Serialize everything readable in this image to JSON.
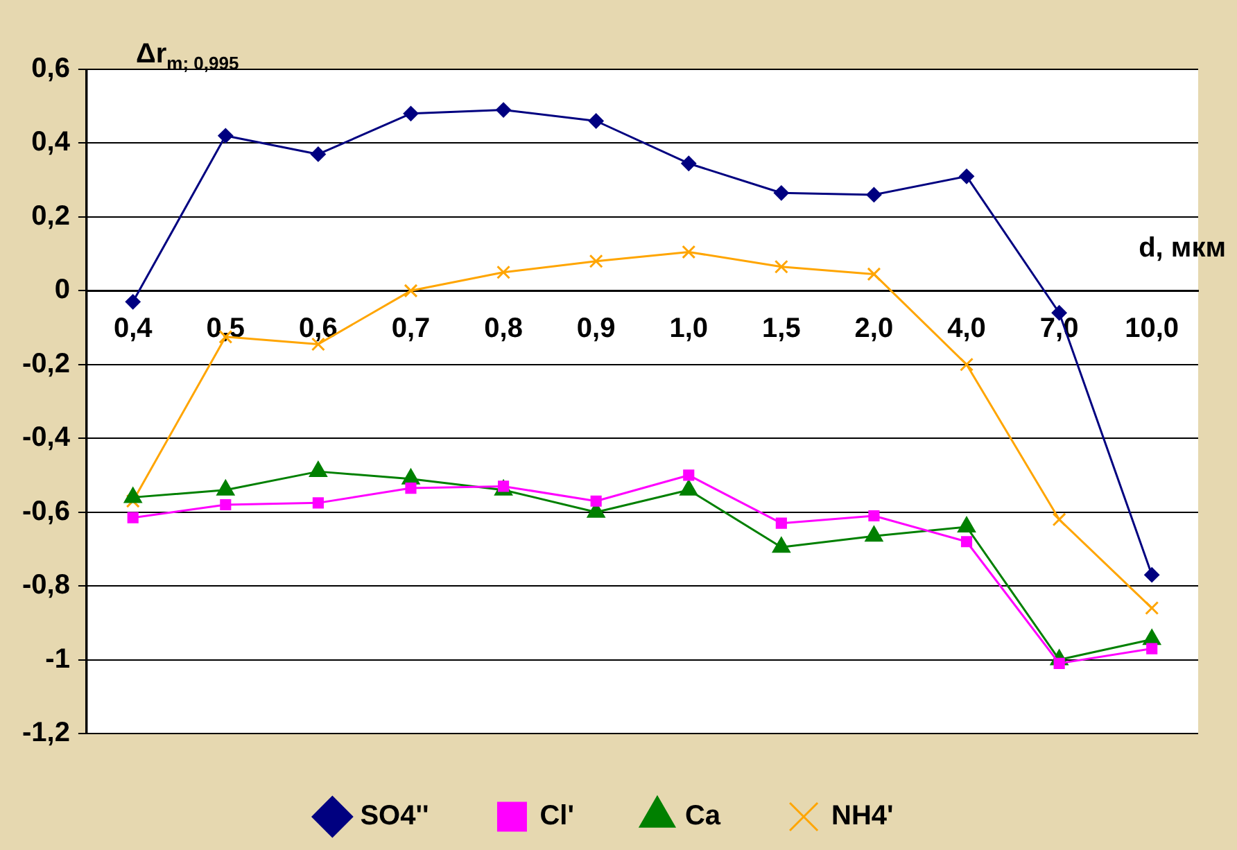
{
  "chart_data": {
    "type": "line",
    "ylabel": "Δr$_{m; 0,995}$",
    "xlabel": "d, мкм",
    "categories": [
      "0,4",
      "0,5",
      "0,6",
      "0,7",
      "0,8",
      "0,9",
      "1,0",
      "1,5",
      "2,0",
      "4,0",
      "7,0",
      "10,0"
    ],
    "series": [
      {
        "name": "SO4''",
        "color": "#000080",
        "marker": "diamond",
        "values": [
          -0.03,
          0.42,
          0.37,
          0.48,
          0.49,
          0.46,
          0.345,
          0.265,
          0.26,
          0.31,
          -0.06,
          -0.77
        ]
      },
      {
        "name": "Cl'",
        "color": "#ff00ff",
        "marker": "square",
        "values": [
          -0.615,
          -0.58,
          -0.575,
          -0.535,
          -0.53,
          -0.57,
          -0.5,
          -0.63,
          -0.61,
          -0.68,
          -1.01,
          -0.97
        ]
      },
      {
        "name": "Ca",
        "color": "#008000",
        "marker": "triangle",
        "values": [
          -0.56,
          -0.54,
          -0.49,
          -0.51,
          -0.54,
          -0.6,
          -0.54,
          -0.695,
          -0.665,
          -0.64,
          -1.0,
          -0.945
        ]
      },
      {
        "name": "NH4'",
        "color": "#ffa500",
        "marker": "cross",
        "values": [
          -0.57,
          -0.125,
          -0.145,
          0.0,
          0.05,
          0.08,
          0.105,
          0.065,
          0.045,
          -0.2,
          -0.62,
          -0.86
        ]
      }
    ],
    "ylim": [
      -1.2,
      0.6
    ],
    "yticks": [
      {
        "value": -1.2,
        "label": "-1,2"
      },
      {
        "value": -1,
        "label": "-1"
      },
      {
        "value": -0.8,
        "label": "-0,8"
      },
      {
        "value": -0.6,
        "label": "-0,6"
      },
      {
        "value": -0.4,
        "label": "-0,4"
      },
      {
        "value": -0.2,
        "label": "-0,2"
      },
      0,
      {
        "value": 0.2,
        "label": "0,2"
      },
      {
        "value": 0.4,
        "label": "0,4"
      },
      {
        "value": 0.6,
        "label": "0,6"
      }
    ],
    "grid": "y",
    "legend": "bottom"
  }
}
